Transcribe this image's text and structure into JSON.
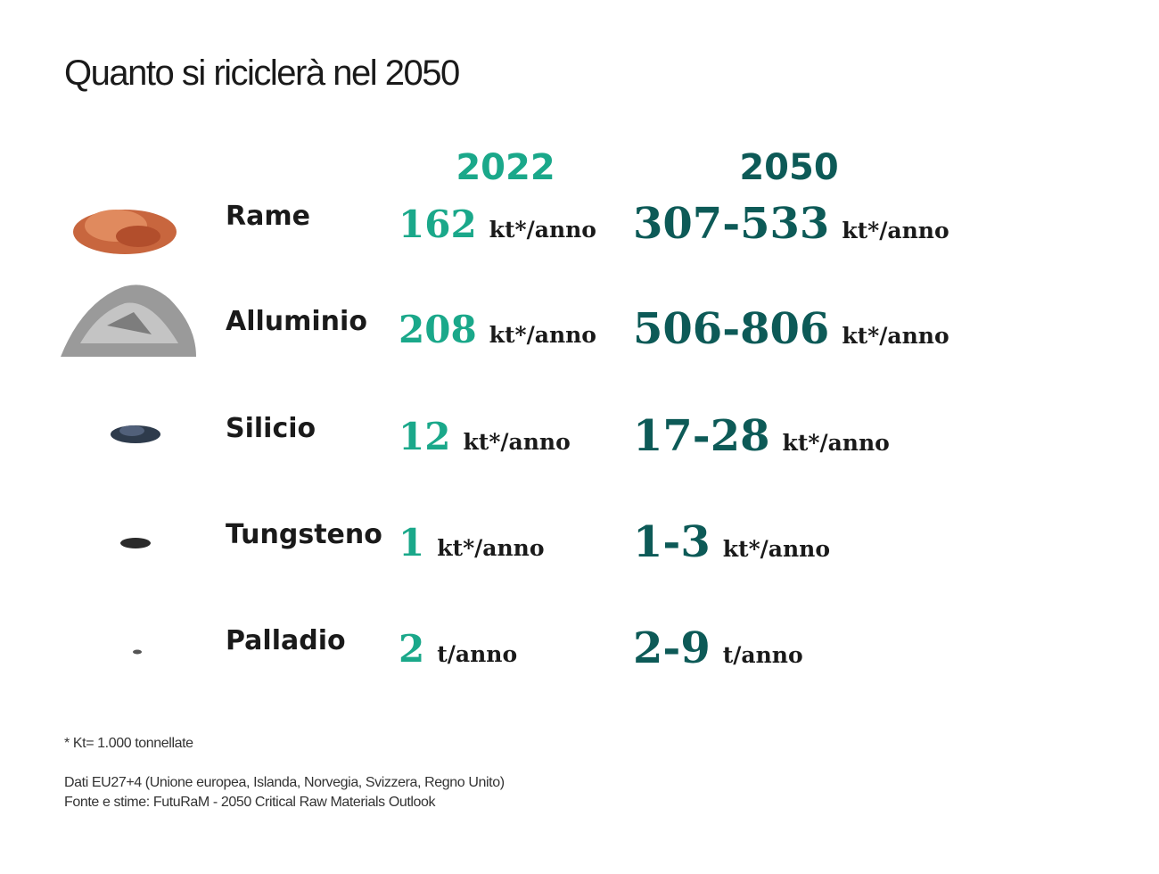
{
  "header": {
    "title": "Quanto si riciclerà nel 2050"
  },
  "table": {
    "columns": [
      "2022",
      "2050"
    ],
    "rows": [
      {
        "name": "Rame",
        "value_2022": "162",
        "unit_2022": "kt*/anno",
        "value_2050": "307-533",
        "unit_2050": "kt*/anno"
      },
      {
        "name": "Alluminio",
        "value_2022": "208",
        "unit_2022": "kt*/anno",
        "value_2050": "506-806",
        "unit_2050": "kt*/anno"
      },
      {
        "name": "Silicio",
        "value_2022": "12",
        "unit_2022": "kt*/anno",
        "value_2050": "17-28",
        "unit_2050": "kt*/anno"
      },
      {
        "name": "Tungsteno",
        "value_2022": "1",
        "unit_2022": "kt*/anno",
        "value_2050": "1-3",
        "unit_2050": "kt*/anno"
      },
      {
        "name": "Palladio",
        "value_2022": "2",
        "unit_2022": "t/anno",
        "value_2050": "2-9",
        "unit_2050": "t/anno"
      }
    ]
  },
  "footer": {
    "note": "* Kt= 1.000 tonnellate",
    "sources": [
      "Dati EU27+4 (Unione europea, Islanda, Norvegia, Svizzera, Regno Unito)",
      "Fonte e stime: FutuRaM - 2050 Critical Raw Materials Outlook"
    ]
  }
}
